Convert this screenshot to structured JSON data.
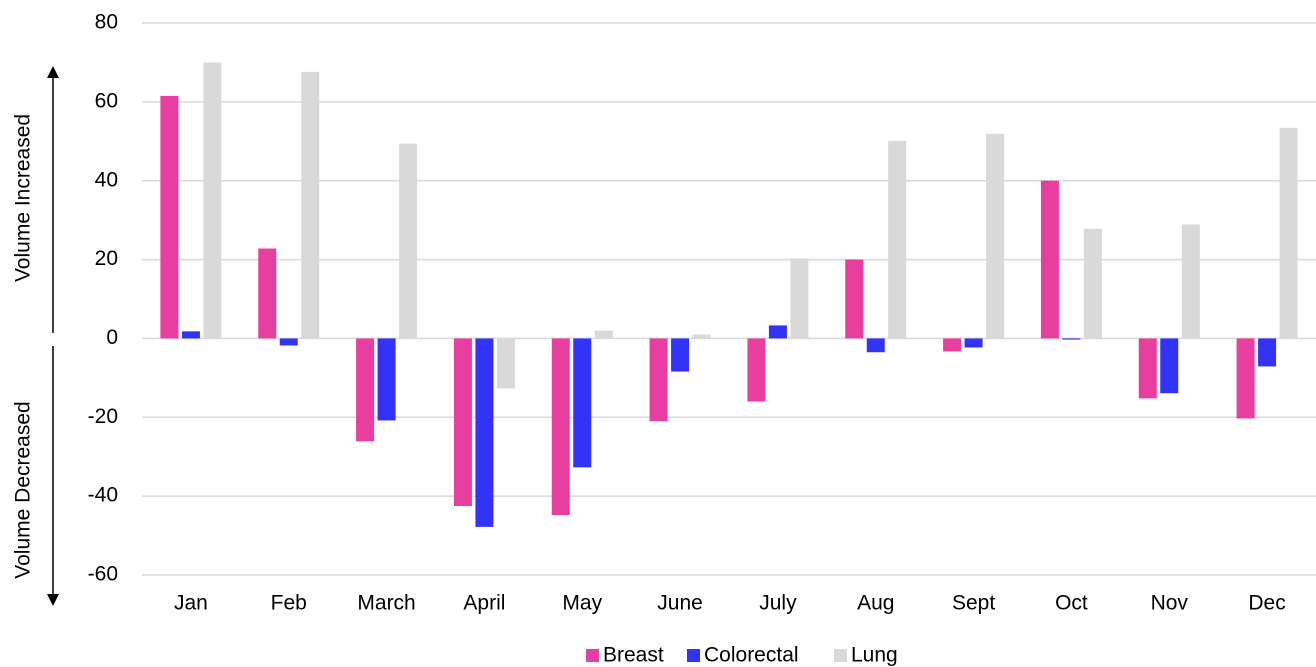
{
  "chart_data": {
    "type": "bar",
    "annotations": [
      "Volume Increased",
      "Volume Decreased"
    ],
    "categories": [
      "Jan",
      "Feb",
      "March",
      "April",
      "May",
      "June",
      "July",
      "Aug",
      "Sept",
      "Oct",
      "Nov",
      "Dec"
    ],
    "series": [
      {
        "name": "Breast",
        "color": "#e83e9f",
        "values": [
          61.5,
          22.8,
          -26.1,
          -42.5,
          -44.8,
          -21,
          -16,
          20,
          -3.3,
          40,
          -15.2,
          -20.3
        ]
      },
      {
        "name": "Colorectal",
        "color": "#3333f5",
        "values": [
          1.8,
          -1.8,
          -20.8,
          -47.8,
          -32.7,
          -8.4,
          3.3,
          -3.5,
          -2.3,
          -0.3,
          -13.9,
          -7.1
        ]
      },
      {
        "name": "Lung",
        "color": "#d9d9d9",
        "values": [
          70,
          67.6,
          49.4,
          -12.7,
          2,
          1,
          20.3,
          50.1,
          51.9,
          27.8,
          28.9,
          53.4
        ]
      }
    ],
    "ylim": [
      -60,
      80
    ],
    "yticks": [
      -60,
      -40,
      -20,
      0,
      20,
      40,
      60,
      80
    ],
    "grid": true,
    "legend": "bottom"
  }
}
